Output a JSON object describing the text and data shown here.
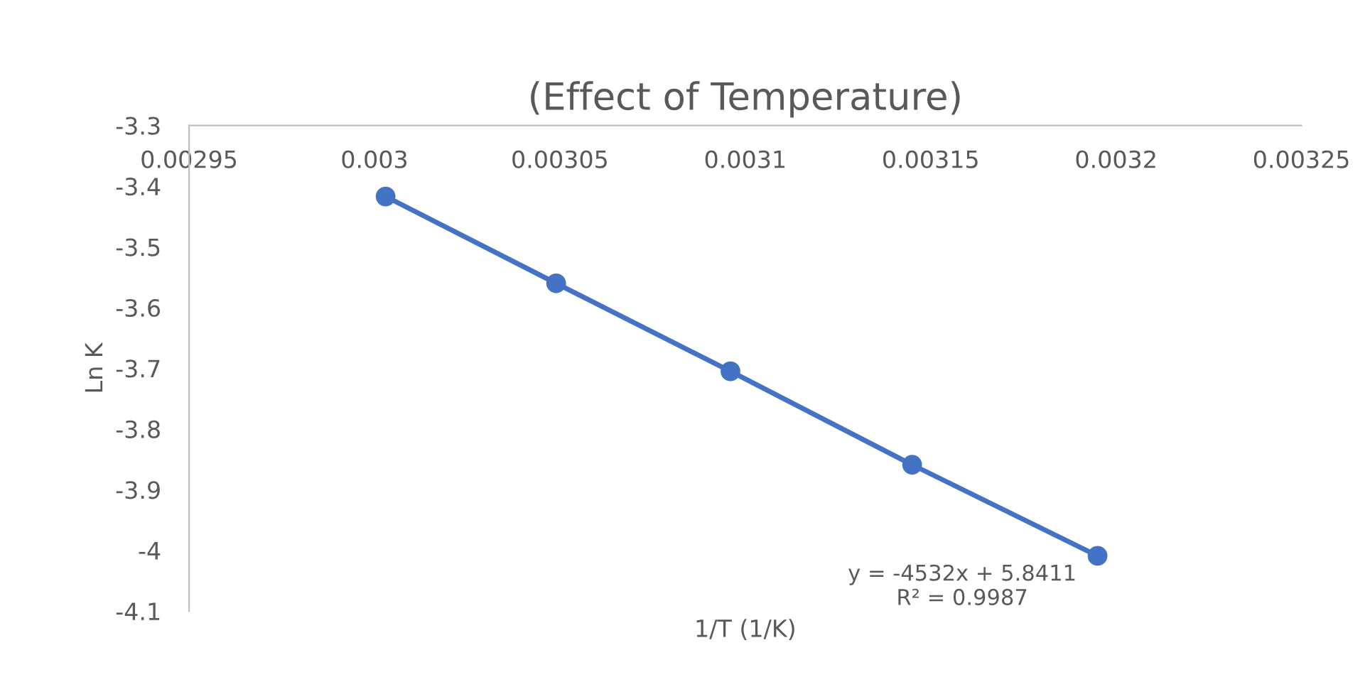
{
  "chart_data": {
    "type": "line",
    "title": "(Effect of Temperature)",
    "xlabel": "1/T (1/K)",
    "ylabel": "Ln K",
    "x": [
      0.003003,
      0.003049,
      0.003096,
      0.003145,
      0.003195
    ],
    "series": [
      {
        "color": "#4472c4",
        "values": [
          -3.417,
          -3.56,
          -3.705,
          -3.859,
          -4.009
        ]
      }
    ],
    "marker": "circle",
    "xlim": [
      0.00295,
      0.00325
    ],
    "xticks": [
      0.00295,
      0.003,
      0.00305,
      0.0031,
      0.00315,
      0.0032,
      0.00325
    ],
    "ylim": [
      -4.1,
      -3.3
    ],
    "yticks": [
      -4.1,
      -4,
      -3.9,
      -3.8,
      -3.7,
      -3.6,
      -3.5,
      -3.4,
      -3.3
    ],
    "annotations": [
      "y = -4532x + 5.8411\nR² = 0.9987"
    ],
    "grid": false
  }
}
